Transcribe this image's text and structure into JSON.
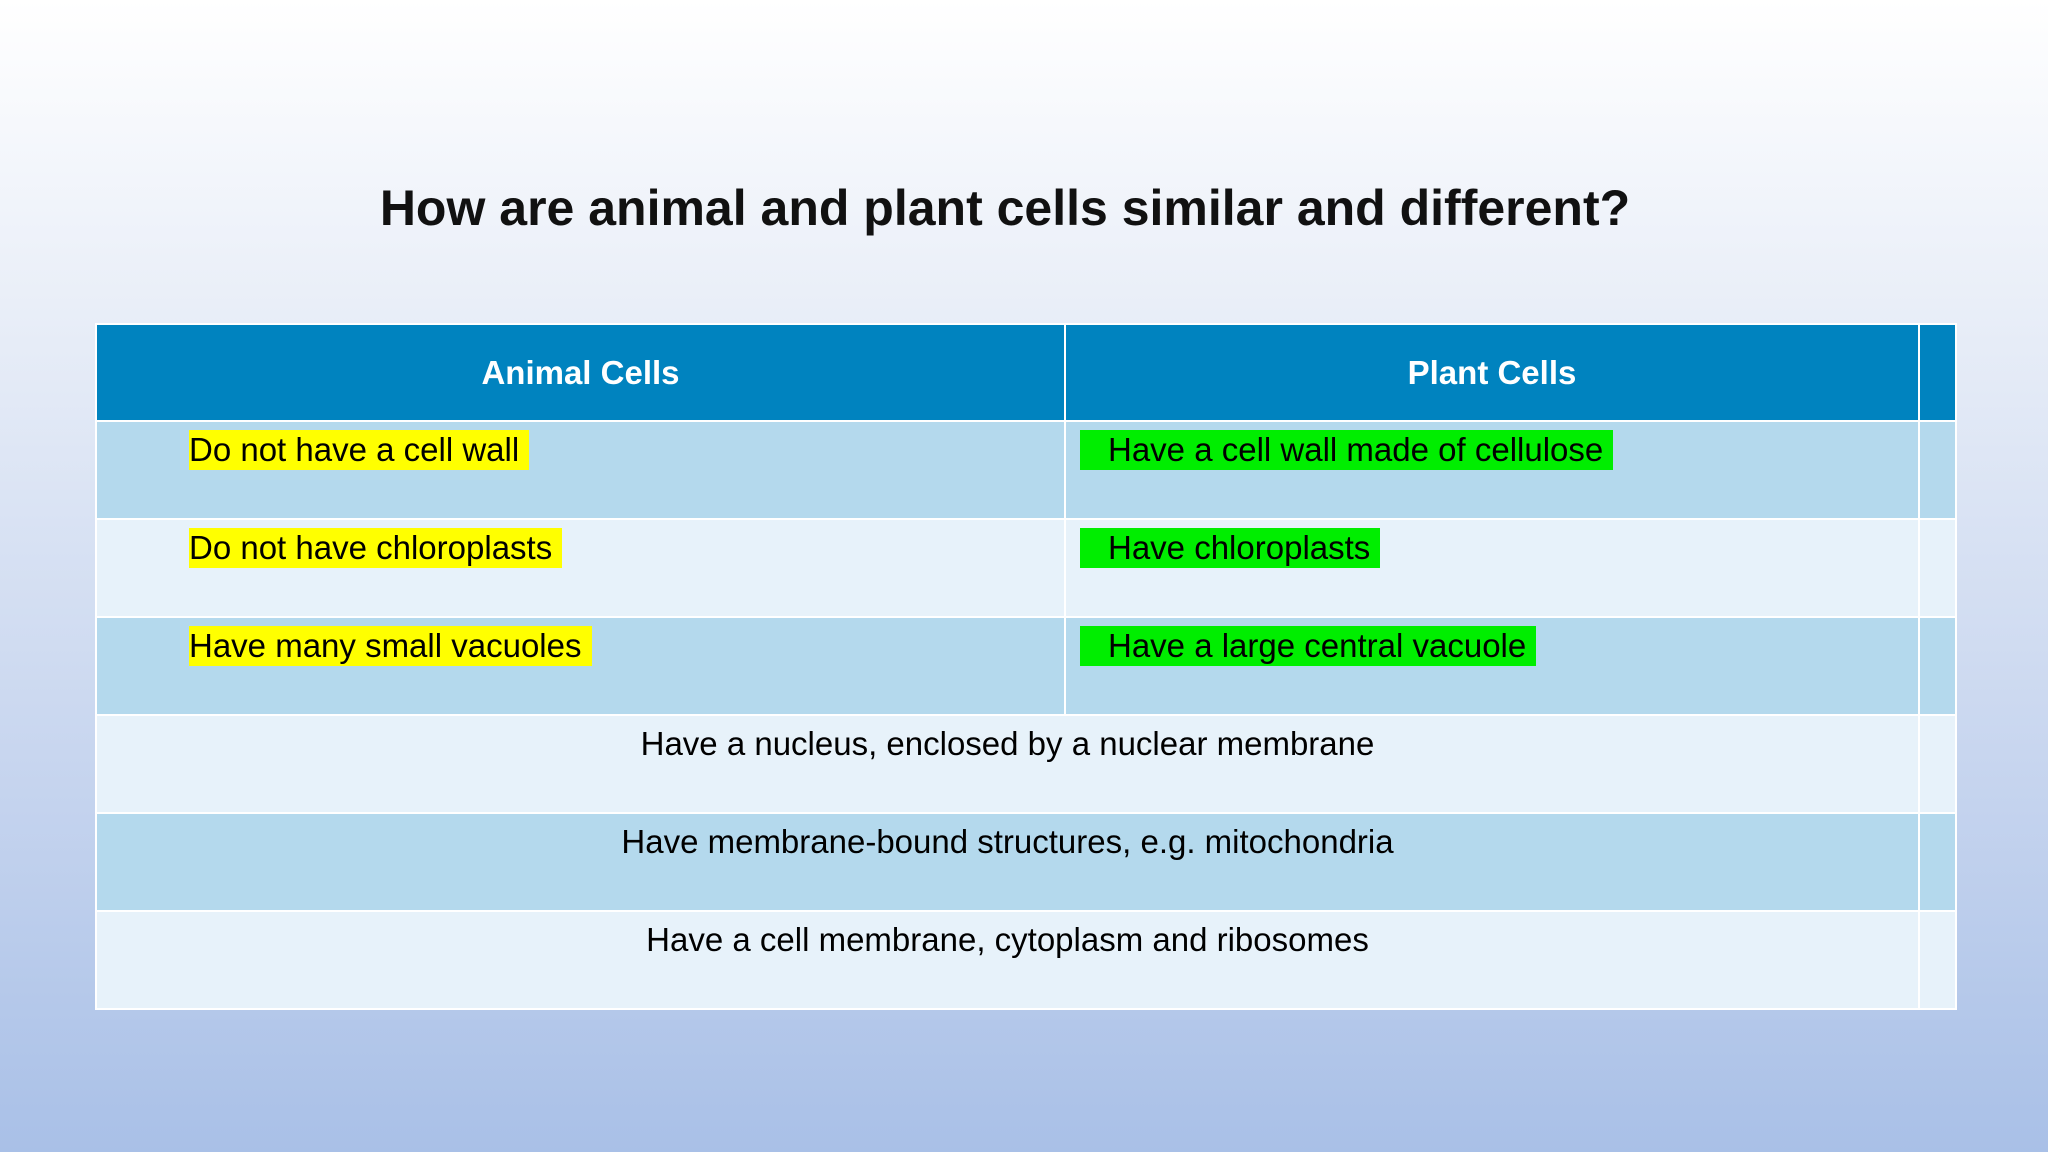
{
  "slide": {
    "title": "How are animal and plant cells similar and different?"
  },
  "table": {
    "headers": [
      "Animal Cells",
      "Plant Cells"
    ],
    "difference_rows": [
      {
        "animal": "Do not have a cell wall",
        "plant": "Have a cell wall made of cellulose"
      },
      {
        "animal": "Do not have chloroplasts",
        "plant": "Have chloroplasts"
      },
      {
        "animal": "Have many small vacuoles",
        "plant": "Have a large central vacuole"
      }
    ],
    "similarity_rows": [
      "Have a nucleus, enclosed by a nuclear membrane",
      "Have membrane-bound structures, e.g. mitochondria",
      "Have a cell membrane, cytoplasm and ribosomes"
    ]
  },
  "colors": {
    "header_bg": "#0083bf",
    "row_dark": "#b4d9ed",
    "row_light": "#e7f2fa",
    "highlight_animal": "#ffff00",
    "highlight_plant": "#00ee00"
  }
}
